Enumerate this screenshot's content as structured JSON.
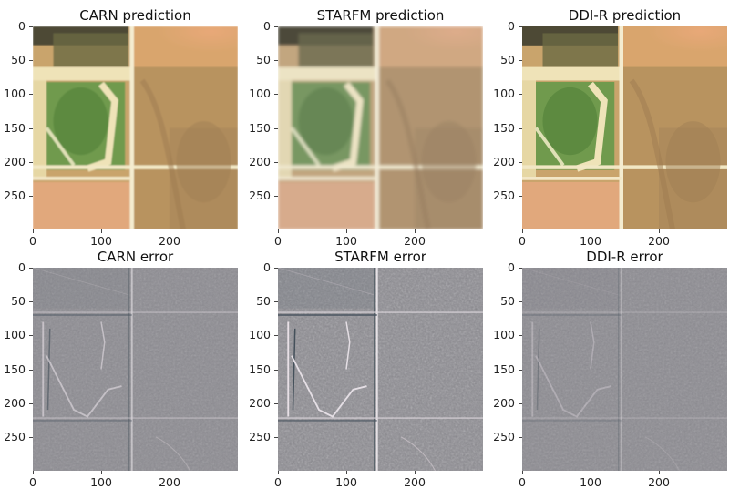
{
  "panels": [
    {
      "id": "carn-prediction",
      "title": "CARN prediction",
      "kind": "prediction",
      "variant": "carn"
    },
    {
      "id": "starfm-prediction",
      "title": "STARFM prediction",
      "kind": "prediction",
      "variant": "starfm"
    },
    {
      "id": "ddir-prediction",
      "title": "DDI-R prediction",
      "kind": "prediction",
      "variant": "ddir"
    },
    {
      "id": "carn-error",
      "title": "CARN error",
      "kind": "error",
      "variant": "carn"
    },
    {
      "id": "starfm-error",
      "title": "STARFM error",
      "kind": "error",
      "variant": "starfm"
    },
    {
      "id": "ddir-error",
      "title": "DDI-R error",
      "kind": "error",
      "variant": "ddir"
    }
  ],
  "y_ticks": [
    "0",
    "50",
    "100",
    "150",
    "200",
    "250"
  ],
  "x_ticks": [
    "0",
    "100",
    "200"
  ],
  "colors": {
    "prediction_bg": "#c9a46c",
    "field_green": "#6f9a4e",
    "pale_road": "#efe3b8",
    "error_bg": "#8d8c92"
  }
}
